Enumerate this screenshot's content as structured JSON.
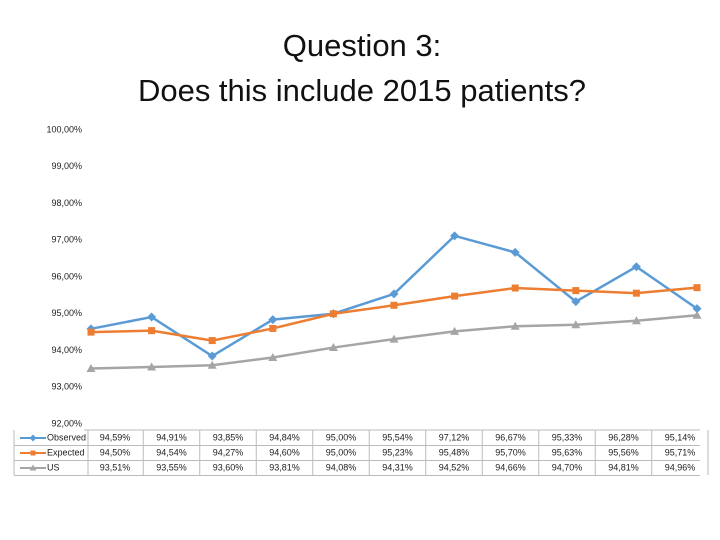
{
  "chart_data": {
    "type": "line",
    "title": [
      "Question 3:",
      "Does this include 2015 patients?"
    ],
    "series": [
      {
        "name": "Observed",
        "color": "#5b9bd5",
        "marker": "diamond",
        "values": [
          94.59,
          94.91,
          93.85,
          94.84,
          95.0,
          95.54,
          97.12,
          96.67,
          95.33,
          96.28,
          95.14
        ],
        "value_labels": [
          "94,59%",
          "94,91%",
          "93,85%",
          "94,84%",
          "95,00%",
          "95,54%",
          "97,12%",
          "96,67%",
          "95,33%",
          "96,28%",
          "95,14%"
        ]
      },
      {
        "name": "Expected",
        "color": "#ed7d31",
        "marker": "square",
        "values": [
          94.5,
          94.54,
          94.27,
          94.6,
          95.0,
          95.23,
          95.48,
          95.7,
          95.63,
          95.56,
          95.71
        ],
        "value_labels": [
          "94,50%",
          "94,54%",
          "94,27%",
          "94,60%",
          "95,00%",
          "95,23%",
          "95,48%",
          "95,70%",
          "95,63%",
          "95,56%",
          "95,71%"
        ]
      },
      {
        "name": "US",
        "color": "#a5a5a5",
        "marker": "triangle",
        "values": [
          93.51,
          93.55,
          93.6,
          93.81,
          94.08,
          94.31,
          94.52,
          94.66,
          94.7,
          94.81,
          94.96
        ],
        "value_labels": [
          "93,51%",
          "93,55%",
          "93,60%",
          "93,81%",
          "94,08%",
          "94,31%",
          "94,52%",
          "94,66%",
          "94,70%",
          "94,81%",
          "94,96%"
        ]
      }
    ],
    "ylim": [
      92,
      100
    ],
    "yticks": [
      {
        "value": 92,
        "label": "92,00%"
      },
      {
        "value": 93,
        "label": "93,00%"
      },
      {
        "value": 94,
        "label": "94,00%"
      },
      {
        "value": 95,
        "label": "95,00%"
      },
      {
        "value": 96,
        "label": "96,00%"
      },
      {
        "value": 97,
        "label": "97,00%"
      },
      {
        "value": 98,
        "label": "98,00%"
      },
      {
        "value": 99,
        "label": "99,00%"
      },
      {
        "value": 100,
        "label": "100,00%"
      }
    ],
    "grid": false
  }
}
